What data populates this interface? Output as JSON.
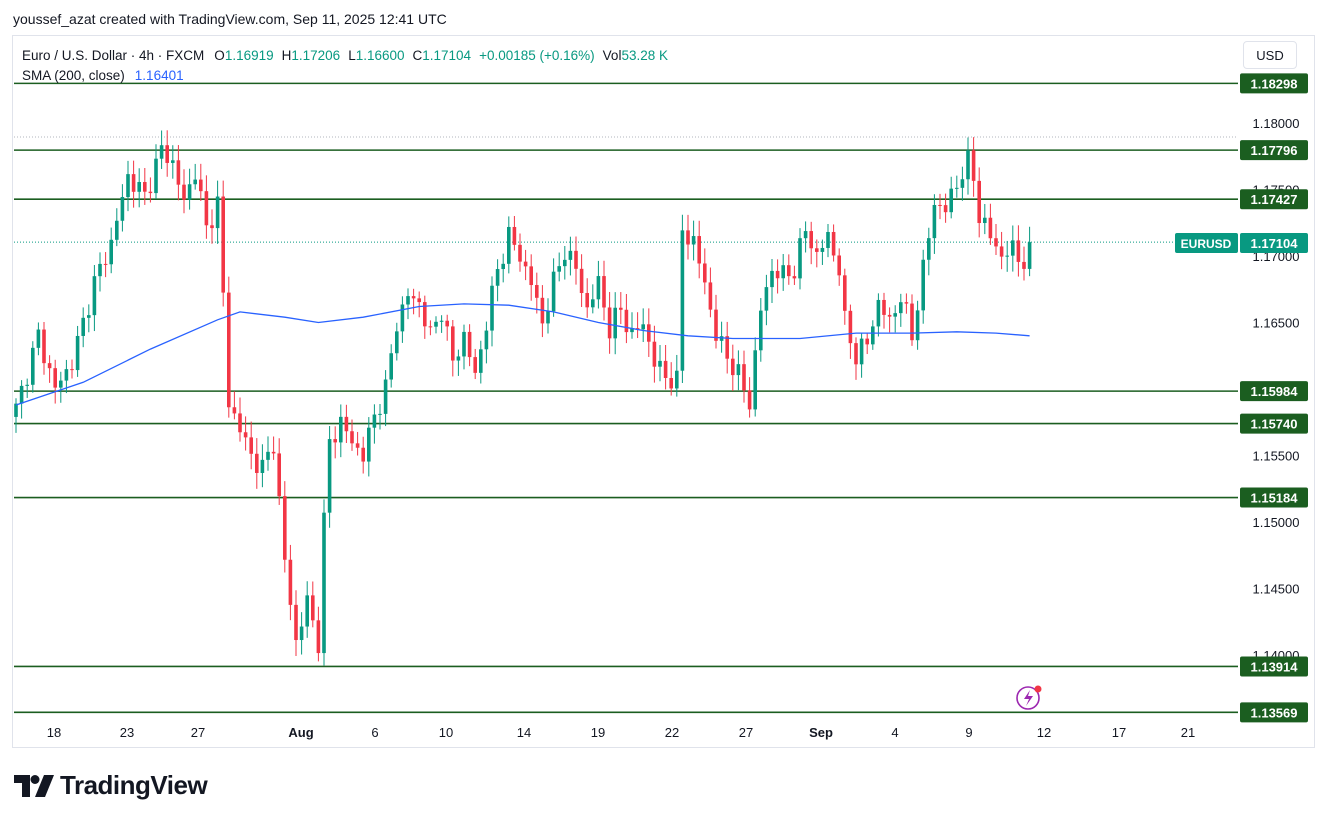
{
  "attribution": "youssef_azat created with TradingView.com, Sep 11, 2025 12:41 UTC",
  "legend": {
    "symbol": "Euro / U.S. Dollar · 4h · FXCM",
    "open_label": "O",
    "open": "1.16919",
    "high_label": "H",
    "high": "1.17206",
    "low_label": "L",
    "low": "1.16600",
    "close_label": "C",
    "close": "1.17104",
    "change": "+0.00185 (+0.16%)",
    "vol_label": "Vol",
    "vol": "53.28 K",
    "sma_label": "SMA (200, close)",
    "sma_value": "1.16401"
  },
  "currency_button": "USD",
  "ticker_tag": "EURUSD",
  "brand": "TradingView",
  "colors": {
    "up": "#089981",
    "down": "#f23645",
    "sma": "#2962ff",
    "level_line": "#1b5e20",
    "level_label_bg": "#1b5e20",
    "price_tag": "#089981",
    "alert_icon": "#9c27b0"
  },
  "chart_data": {
    "type": "candlestick",
    "symbol": "EURUSD",
    "interval": "4h",
    "ylim": [
      1.1348,
      1.1862
    ],
    "y_ticks": [
      "1.18000",
      "1.17500",
      "1.17000",
      "1.16500",
      "1.16000",
      "1.15500",
      "1.15000",
      "1.14500",
      "1.14000"
    ],
    "x_ticks": [
      {
        "label": "18",
        "bold": false
      },
      {
        "label": "23",
        "bold": false
      },
      {
        "label": "27",
        "bold": false
      },
      {
        "label": "Aug",
        "bold": true
      },
      {
        "label": "6",
        "bold": false
      },
      {
        "label": "10",
        "bold": false
      },
      {
        "label": "14",
        "bold": false
      },
      {
        "label": "19",
        "bold": false
      },
      {
        "label": "22",
        "bold": false
      },
      {
        "label": "27",
        "bold": false
      },
      {
        "label": "Sep",
        "bold": true
      },
      {
        "label": "4",
        "bold": false
      },
      {
        "label": "9",
        "bold": false
      },
      {
        "label": "12",
        "bold": false
      },
      {
        "label": "17",
        "bold": false
      },
      {
        "label": "21",
        "bold": false
      }
    ],
    "horizontal_levels": [
      "1.18298",
      "1.17796",
      "1.17427",
      "1.15984",
      "1.15740",
      "1.15184",
      "1.13914",
      "1.13569"
    ],
    "last_price": "1.17104",
    "close_path": [
      [
        0,
        1.1585
      ],
      [
        4,
        1.164
      ],
      [
        7,
        1.16
      ],
      [
        10,
        1.162
      ],
      [
        14,
        1.168
      ],
      [
        17,
        1.171
      ],
      [
        20,
        1.176
      ],
      [
        23,
        1.1745
      ],
      [
        26,
        1.178
      ],
      [
        28,
        1.177
      ],
      [
        30,
        1.174
      ],
      [
        32,
        1.1765
      ],
      [
        34,
        1.172
      ],
      [
        36,
        1.174
      ],
      [
        37,
        1.167
      ],
      [
        38,
        1.159
      ],
      [
        40,
        1.157
      ],
      [
        42,
        1.155
      ],
      [
        44,
        1.154
      ],
      [
        46,
        1.156
      ],
      [
        48,
        1.147
      ],
      [
        50,
        1.141
      ],
      [
        52,
        1.144
      ],
      [
        54,
        1.141
      ],
      [
        55,
        1.15
      ],
      [
        56,
        1.156
      ],
      [
        58,
        1.1575
      ],
      [
        60,
        1.156
      ],
      [
        62,
        1.155
      ],
      [
        64,
        1.158
      ],
      [
        66,
        1.16
      ],
      [
        68,
        1.165
      ],
      [
        70,
        1.167
      ],
      [
        72,
        1.1665
      ],
      [
        74,
        1.164
      ],
      [
        76,
        1.166
      ],
      [
        78,
        1.162
      ],
      [
        80,
        1.164
      ],
      [
        82,
        1.161
      ],
      [
        84,
        1.165
      ],
      [
        86,
        1.169
      ],
      [
        88,
        1.1715
      ],
      [
        90,
        1.17
      ],
      [
        92,
        1.168
      ],
      [
        94,
        1.165
      ],
      [
        96,
        1.168
      ],
      [
        98,
        1.1705
      ],
      [
        100,
        1.169
      ],
      [
        102,
        1.166
      ],
      [
        104,
        1.168
      ],
      [
        106,
        1.1645
      ],
      [
        108,
        1.166
      ],
      [
        110,
        1.164
      ],
      [
        112,
        1.165
      ],
      [
        114,
        1.162
      ],
      [
        116,
        1.161
      ],
      [
        118,
        1.1605
      ],
      [
        119,
        1.172
      ],
      [
        121,
        1.171
      ],
      [
        123,
        1.168
      ],
      [
        125,
        1.164
      ],
      [
        127,
        1.1625
      ],
      [
        129,
        1.161
      ],
      [
        131,
        1.159
      ],
      [
        133,
        1.166
      ],
      [
        135,
        1.169
      ],
      [
        137,
        1.1685
      ],
      [
        139,
        1.169
      ],
      [
        141,
        1.172
      ],
      [
        143,
        1.17
      ],
      [
        145,
        1.1715
      ],
      [
        147,
        1.169
      ],
      [
        148,
        1.165
      ],
      [
        150,
        1.1625
      ],
      [
        152,
        1.1635
      ],
      [
        154,
        1.1665
      ],
      [
        156,
        1.165
      ],
      [
        158,
        1.167
      ],
      [
        160,
        1.164
      ],
      [
        162,
        1.169
      ],
      [
        164,
        1.174
      ],
      [
        166,
        1.1735
      ],
      [
        168,
        1.1755
      ],
      [
        170,
        1.177
      ],
      [
        171,
        1.176
      ],
      [
        172,
        1.173
      ],
      [
        174,
        1.1715
      ],
      [
        176,
        1.17
      ],
      [
        178,
        1.1705
      ],
      [
        180,
        1.1695
      ],
      [
        181,
        1.17104
      ]
    ],
    "sma": [
      [
        0,
        1.1588
      ],
      [
        12,
        1.1605
      ],
      [
        24,
        1.163
      ],
      [
        36,
        1.1652
      ],
      [
        40,
        1.1658
      ],
      [
        48,
        1.1654
      ],
      [
        54,
        1.165
      ],
      [
        62,
        1.1654
      ],
      [
        72,
        1.1662
      ],
      [
        80,
        1.1664
      ],
      [
        88,
        1.1663
      ],
      [
        96,
        1.1658
      ],
      [
        104,
        1.165
      ],
      [
        112,
        1.1644
      ],
      [
        120,
        1.164
      ],
      [
        128,
        1.1638
      ],
      [
        140,
        1.1638
      ],
      [
        150,
        1.1642
      ],
      [
        160,
        1.1642
      ],
      [
        168,
        1.1643
      ],
      [
        175,
        1.1642
      ],
      [
        181,
        1.164
      ]
    ]
  }
}
